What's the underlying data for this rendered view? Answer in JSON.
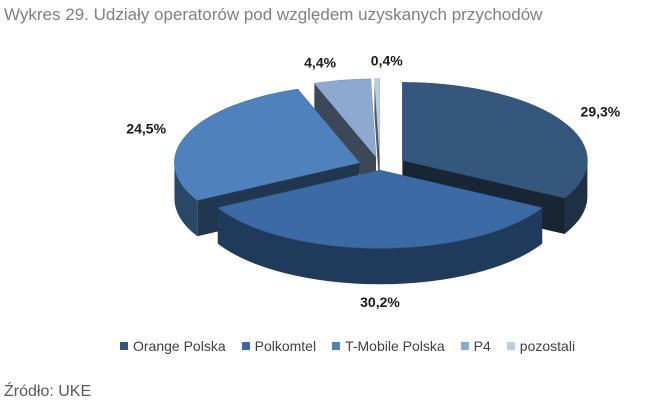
{
  "title": "Wykres 29. Udziały operatorów pod względem uzyskanych przychodów",
  "source": "Źródło: UKE",
  "chart_data": {
    "type": "pie",
    "style": "3d-exploded",
    "title": "Wykres 29. Udziały operatorów pod względem uzyskanych przychodów",
    "categories": [
      "Orange Polska",
      "Polkomtel",
      "T-Mobile Polska",
      "P4",
      "pozostali"
    ],
    "values": [
      29.3,
      30.2,
      24.5,
      4.4,
      0.4
    ],
    "labels": [
      "29,3%",
      "30,2%",
      "24,5%",
      "4,4%",
      "0,4%"
    ],
    "colors": [
      "#36577d",
      "#3b6aa5",
      "#4f81bd",
      "#8ea9d0",
      "#b9cde5"
    ],
    "legend_position": "bottom"
  }
}
